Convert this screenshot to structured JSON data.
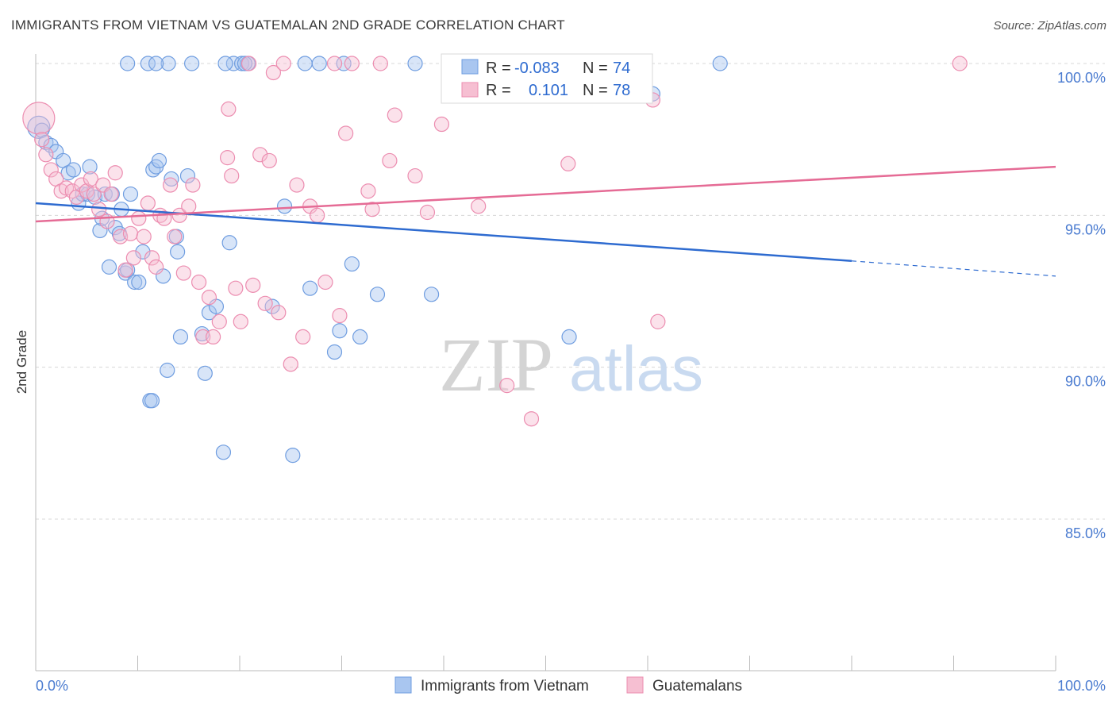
{
  "title": "IMMIGRANTS FROM VIETNAM VS GUATEMALAN 2ND GRADE CORRELATION CHART",
  "source": "Source: ZipAtlas.com",
  "watermark": {
    "zip": "ZIP",
    "atlas": "atlas"
  },
  "colors": {
    "blue": "#2e6bd0",
    "blue_fill": "#a9c6f0",
    "pink": "#e56b95",
    "pink_fill": "#f6bfd2",
    "grid": "#d8d8d8",
    "tick_text": "#4a7bd0"
  },
  "stats": {
    "series1": {
      "r_label": "R =",
      "r_value": "-0.083",
      "n_label": "N =",
      "n_value": "74"
    },
    "series2": {
      "r_label": "R =",
      "r_value": "0.101",
      "n_label": "N =",
      "n_value": "78"
    }
  },
  "chart_data": {
    "type": "scatter",
    "title": "IMMIGRANTS FROM VIETNAM VS GUATEMALAN 2ND GRADE CORRELATION CHART",
    "xlabel": "",
    "ylabel": "2nd Grade",
    "xlim": [
      0,
      100
    ],
    "ylim": [
      80.5,
      100.5
    ],
    "x_tick_labels": [
      "0.0%",
      "100.0%"
    ],
    "y_ticks": [
      85,
      90,
      95,
      100
    ],
    "y_tick_labels": [
      "85.0%",
      "90.0%",
      "95.0%",
      "100.0%"
    ],
    "grid": true,
    "legend_position": "bottom",
    "series": [
      {
        "name": "Immigrants from Vietnam",
        "color": "#2e6bd0",
        "trend": {
          "x": [
            0,
            80,
            100
          ],
          "y": [
            95.4,
            93.5,
            93.0
          ],
          "dashed_from": 80
        },
        "points": [
          [
            0.3,
            97.9
          ],
          [
            0.6,
            97.8
          ],
          [
            1.0,
            97.4
          ],
          [
            1.5,
            97.3
          ],
          [
            2.0,
            97.1
          ],
          [
            2.7,
            96.8
          ],
          [
            3.2,
            96.4
          ],
          [
            3.7,
            96.5
          ],
          [
            4.2,
            95.4
          ],
          [
            4.6,
            95.7
          ],
          [
            5.1,
            95.7
          ],
          [
            5.3,
            96.6
          ],
          [
            5.8,
            95.6
          ],
          [
            6.3,
            94.5
          ],
          [
            6.5,
            94.9
          ],
          [
            6.8,
            95.7
          ],
          [
            7.2,
            93.3
          ],
          [
            7.5,
            95.7
          ],
          [
            7.8,
            94.6
          ],
          [
            8.2,
            94.4
          ],
          [
            8.4,
            95.2
          ],
          [
            8.8,
            93.1
          ],
          [
            9.0,
            93.2
          ],
          [
            9.3,
            95.7
          ],
          [
            9.7,
            92.8
          ],
          [
            10.1,
            92.8
          ],
          [
            10.5,
            93.8
          ],
          [
            11.2,
            88.9
          ],
          [
            11.4,
            88.9
          ],
          [
            11.5,
            96.5
          ],
          [
            11.8,
            96.6
          ],
          [
            12.1,
            96.8
          ],
          [
            12.5,
            93.0
          ],
          [
            12.9,
            89.9
          ],
          [
            13.0,
            100.0
          ],
          [
            13.3,
            96.2
          ],
          [
            13.8,
            94.3
          ],
          [
            13.9,
            93.8
          ],
          [
            14.2,
            91.0
          ],
          [
            14.9,
            96.3
          ],
          [
            16.3,
            91.1
          ],
          [
            16.6,
            89.8
          ],
          [
            17.0,
            91.8
          ],
          [
            17.7,
            92.0
          ],
          [
            18.4,
            87.2
          ],
          [
            19.0,
            94.1
          ],
          [
            19.4,
            100.0
          ],
          [
            20.2,
            100.0
          ],
          [
            20.8,
            100.0
          ],
          [
            23.2,
            92.0
          ],
          [
            24.4,
            95.3
          ],
          [
            25.2,
            87.1
          ],
          [
            26.4,
            100.0
          ],
          [
            26.9,
            92.6
          ],
          [
            27.8,
            100.0
          ],
          [
            29.3,
            90.5
          ],
          [
            29.8,
            91.2
          ],
          [
            30.2,
            100.0
          ],
          [
            31.0,
            93.4
          ],
          [
            31.8,
            91.0
          ],
          [
            33.5,
            92.4
          ],
          [
            37.2,
            100.0
          ],
          [
            38.8,
            92.4
          ],
          [
            41.5,
            100.0
          ],
          [
            47.2,
            100.0
          ],
          [
            52.3,
            91.0
          ],
          [
            60.5,
            99.0
          ],
          [
            67.1,
            100.0
          ],
          [
            9.0,
            100.0
          ],
          [
            11.0,
            100.0
          ],
          [
            11.8,
            100.0
          ],
          [
            15.3,
            100.0
          ],
          [
            18.6,
            100.0
          ],
          [
            20.5,
            100.0
          ]
        ]
      },
      {
        "name": "Guatemalans",
        "color": "#e56b95",
        "trend": {
          "x": [
            0,
            100
          ],
          "y": [
            94.8,
            96.6
          ]
        },
        "points": [
          [
            0.3,
            98.2
          ],
          [
            0.6,
            97.5
          ],
          [
            1.0,
            97.0
          ],
          [
            1.5,
            96.5
          ],
          [
            2.0,
            96.2
          ],
          [
            2.5,
            95.8
          ],
          [
            3.0,
            95.9
          ],
          [
            3.6,
            95.8
          ],
          [
            4.0,
            95.6
          ],
          [
            4.5,
            96.0
          ],
          [
            5.0,
            95.8
          ],
          [
            5.4,
            96.2
          ],
          [
            5.7,
            95.7
          ],
          [
            6.2,
            95.2
          ],
          [
            6.6,
            96.0
          ],
          [
            7.0,
            94.8
          ],
          [
            7.4,
            95.7
          ],
          [
            7.8,
            96.4
          ],
          [
            8.3,
            94.3
          ],
          [
            8.8,
            93.2
          ],
          [
            9.3,
            94.4
          ],
          [
            9.6,
            93.6
          ],
          [
            10.1,
            94.9
          ],
          [
            10.6,
            94.3
          ],
          [
            11.0,
            95.4
          ],
          [
            11.4,
            93.6
          ],
          [
            11.8,
            93.3
          ],
          [
            12.2,
            95.0
          ],
          [
            12.6,
            94.9
          ],
          [
            13.2,
            96.0
          ],
          [
            13.6,
            94.3
          ],
          [
            14.1,
            95.0
          ],
          [
            14.5,
            93.1
          ],
          [
            15.0,
            95.3
          ],
          [
            15.4,
            96.0
          ],
          [
            16.0,
            92.8
          ],
          [
            16.4,
            91.0
          ],
          [
            17.0,
            92.3
          ],
          [
            17.4,
            91.0
          ],
          [
            18.0,
            91.5
          ],
          [
            18.8,
            96.9
          ],
          [
            19.2,
            96.3
          ],
          [
            19.6,
            92.6
          ],
          [
            20.1,
            91.5
          ],
          [
            20.9,
            100.0
          ],
          [
            21.3,
            92.7
          ],
          [
            22.0,
            97.0
          ],
          [
            22.5,
            92.1
          ],
          [
            22.9,
            96.8
          ],
          [
            23.3,
            99.7
          ],
          [
            23.8,
            91.8
          ],
          [
            24.3,
            100.0
          ],
          [
            25.0,
            90.1
          ],
          [
            25.6,
            96.0
          ],
          [
            26.2,
            91.0
          ],
          [
            26.9,
            95.3
          ],
          [
            27.6,
            95.0
          ],
          [
            28.4,
            92.8
          ],
          [
            29.3,
            100.0
          ],
          [
            29.8,
            91.7
          ],
          [
            30.4,
            97.7
          ],
          [
            31.0,
            100.0
          ],
          [
            32.6,
            95.8
          ],
          [
            33.0,
            95.2
          ],
          [
            33.8,
            100.0
          ],
          [
            34.7,
            96.8
          ],
          [
            35.2,
            98.3
          ],
          [
            37.2,
            96.3
          ],
          [
            38.4,
            95.1
          ],
          [
            39.8,
            98.0
          ],
          [
            43.4,
            95.3
          ],
          [
            46.2,
            89.4
          ],
          [
            48.6,
            88.3
          ],
          [
            52.2,
            96.7
          ],
          [
            60.5,
            98.8
          ],
          [
            61.0,
            91.5
          ],
          [
            90.6,
            100.0
          ],
          [
            18.9,
            98.5
          ]
        ]
      }
    ]
  }
}
